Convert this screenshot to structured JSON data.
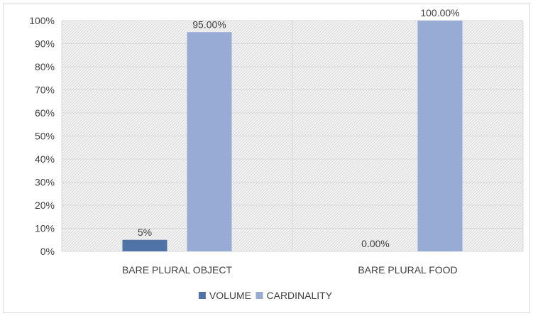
{
  "chart_data": {
    "type": "bar",
    "categories": [
      "BARE PLURAL OBJECT",
      "BARE PLURAL FOOD"
    ],
    "series": [
      {
        "name": "VOLUME",
        "values": [
          5,
          0
        ],
        "labels": [
          "5%",
          "0.00%"
        ],
        "color": "#4f73a6"
      },
      {
        "name": "CARDINALITY",
        "values": [
          95,
          100
        ],
        "labels": [
          "95.00%",
          "100.00%"
        ],
        "color": "#97abd5"
      }
    ],
    "yticks": [
      "0%",
      "10%",
      "20%",
      "30%",
      "40%",
      "50%",
      "60%",
      "70%",
      "80%",
      "90%",
      "100%"
    ],
    "ylim": [
      0,
      100
    ],
    "legend": "bottom",
    "grid": true,
    "plot_background": "hatched light gray"
  }
}
